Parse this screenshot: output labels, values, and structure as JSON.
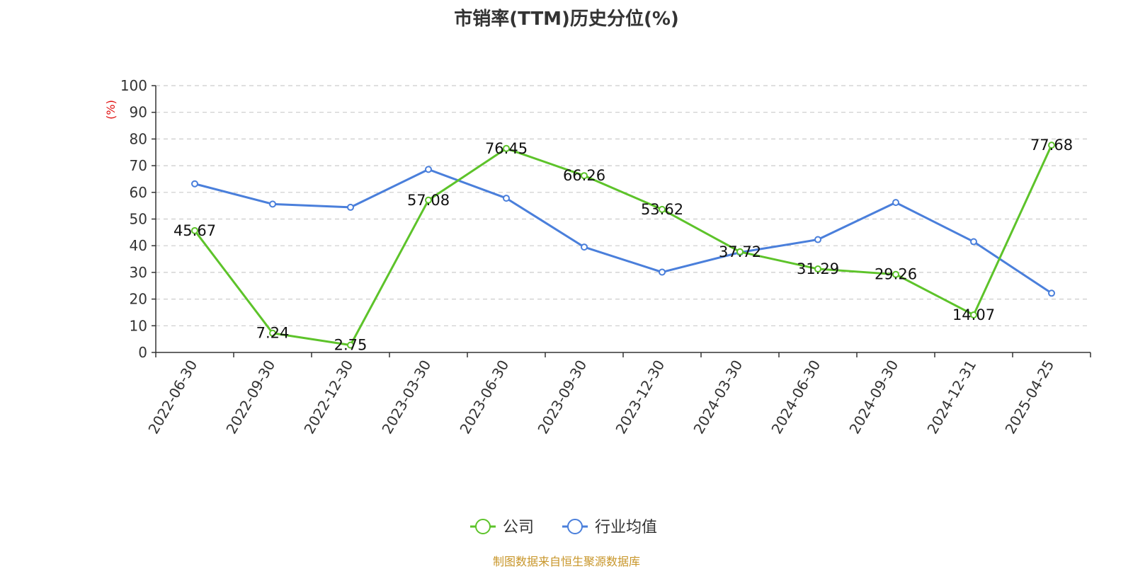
{
  "title": "市销率(TTM)历史分位(%)",
  "source": "制图数据来自恒生聚源数据库",
  "chart_data": {
    "type": "line",
    "title": "市销率(TTM)历史分位(%)",
    "ylabel": "(%)",
    "ylim": [
      0,
      100
    ],
    "yticks": [
      "0",
      "10",
      "20",
      "30",
      "40",
      "50",
      "60",
      "70",
      "80",
      "90",
      "100"
    ],
    "grid": true,
    "legend_position": "bottom-center",
    "categories": [
      "2022-06-30",
      "2022-09-30",
      "2022-12-30",
      "2023-03-30",
      "2023-06-30",
      "2023-09-30",
      "2023-12-30",
      "2024-03-30",
      "2024-06-30",
      "2024-09-30",
      "2024-12-31",
      "2025-04-25"
    ],
    "series": [
      {
        "name": "公司",
        "color": "#5dc32a",
        "values": [
          45.67,
          7.24,
          2.75,
          57.08,
          76.45,
          66.26,
          53.62,
          37.72,
          31.29,
          29.26,
          14.07,
          77.68
        ],
        "labels": [
          "45.67",
          "7.24",
          "2.75",
          "57.08",
          "76.45",
          "66.26",
          "53.62",
          "37.72",
          "31.29",
          "29.26",
          "14.07",
          "77.68"
        ]
      },
      {
        "name": "行业均值",
        "color": "#4a7fdb",
        "values": [
          63.2,
          55.6,
          54.4,
          68.6,
          57.8,
          39.5,
          30.1,
          37.5,
          42.3,
          56.2,
          41.5,
          22.2
        ]
      }
    ]
  }
}
